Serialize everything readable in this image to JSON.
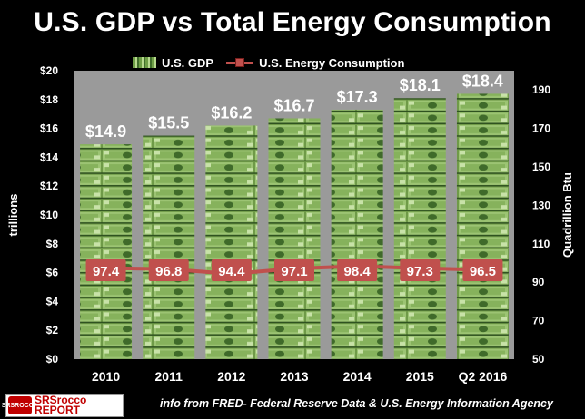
{
  "chart_data": {
    "type": "bar",
    "title": "U.S. GDP vs Total Energy Consumption",
    "categories": [
      "2010",
      "2011",
      "2012",
      "2013",
      "2014",
      "2015",
      "Q2 2016"
    ],
    "series": [
      {
        "name": "U.S. GDP",
        "type": "bar",
        "axis": "left",
        "values": [
          14.9,
          15.5,
          16.2,
          16.7,
          17.3,
          18.1,
          18.4
        ],
        "labels": [
          "$14.9",
          "$15.5",
          "$16.2",
          "$16.7",
          "$17.3",
          "$18.1",
          "$18.4"
        ]
      },
      {
        "name": "U.S. Energy Consumption",
        "type": "line",
        "axis": "right",
        "values": [
          97.4,
          96.8,
          94.4,
          97.1,
          98.4,
          97.3,
          96.5
        ],
        "labels": [
          "97.4",
          "96.8",
          "94.4",
          "97.1",
          "98.4",
          "97.3",
          "96.5"
        ],
        "color": "#c0504d"
      }
    ],
    "ylabel": "trillions",
    "ylim": [
      0,
      20
    ],
    "yticks": [
      "$0",
      "$2",
      "$4",
      "$6",
      "$8",
      "$10",
      "$12",
      "$14",
      "$16",
      "$18",
      "$20"
    ],
    "y2label": "Quadrillion  Btu",
    "y2lim": [
      50,
      200
    ],
    "y2ticks": [
      "50",
      "70",
      "90",
      "110",
      "130",
      "150",
      "170",
      "190"
    ],
    "legend": "top",
    "bar_color": "#7aa84f",
    "plot_background": "#9a9a9a"
  },
  "footer": {
    "logo_badge": "SRSROCCO",
    "logo_text_1": "SRSrocco",
    "logo_text_2": "REPORT",
    "source": "info from FRED- Federal Reserve Data & U.S. Energy Information Agency"
  }
}
